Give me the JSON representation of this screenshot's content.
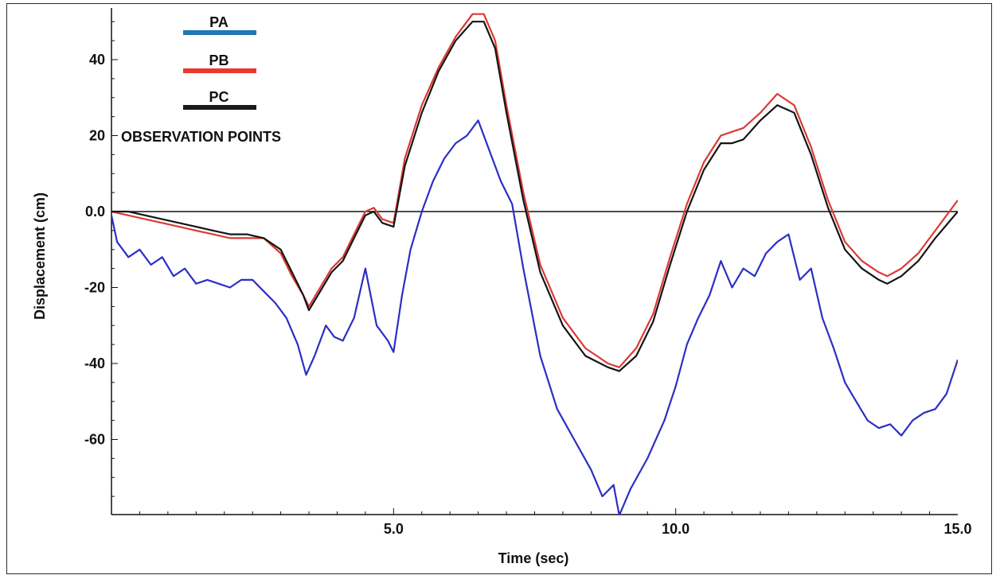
{
  "chart_data": {
    "type": "line",
    "title": "",
    "xlabel": "Time (sec)",
    "ylabel": "Displacement (cm)",
    "xlim": [
      0,
      15
    ],
    "ylim": [
      -80,
      52
    ],
    "x_ticks": [
      5,
      10,
      15
    ],
    "x_tick_labels": [
      "5.0",
      "10.0",
      "15.0"
    ],
    "y_ticks": [
      40,
      20,
      0,
      -20,
      -40,
      -60
    ],
    "y_tick_labels": [
      "40",
      "20",
      "0.0",
      "-20",
      "-40",
      "-60"
    ],
    "zero_line": true,
    "legend_title": "OBSERVATION POINTS",
    "legend_position": "top-left",
    "series": [
      {
        "name": "PA",
        "color": "#2b2fc4",
        "legend_color": "#1f77b4",
        "x": [
          0,
          0.1,
          0.3,
          0.5,
          0.7,
          0.9,
          1.1,
          1.3,
          1.5,
          1.7,
          1.9,
          2.1,
          2.3,
          2.5,
          2.7,
          2.9,
          3.1,
          3.3,
          3.45,
          3.6,
          3.8,
          3.95,
          4.1,
          4.3,
          4.5,
          4.7,
          4.9,
          5.0,
          5.15,
          5.3,
          5.5,
          5.7,
          5.9,
          6.1,
          6.3,
          6.5,
          6.7,
          6.9,
          7.1,
          7.3,
          7.6,
          7.9,
          8.2,
          8.5,
          8.7,
          8.9,
          9.0,
          9.2,
          9.5,
          9.8,
          10.0,
          10.2,
          10.4,
          10.6,
          10.8,
          11.0,
          11.2,
          11.4,
          11.6,
          11.8,
          12.0,
          12.2,
          12.4,
          12.6,
          12.8,
          13.0,
          13.2,
          13.4,
          13.6,
          13.8,
          14.0,
          14.2,
          14.4,
          14.6,
          14.8,
          15.0
        ],
        "values": [
          -1,
          -8,
          -12,
          -10,
          -14,
          -12,
          -17,
          -15,
          -19,
          -18,
          -19,
          -20,
          -18,
          -18,
          -21,
          -24,
          -28,
          -35,
          -43,
          -38,
          -30,
          -33,
          -34,
          -28,
          -15,
          -30,
          -34,
          -37,
          -22,
          -10,
          0,
          8,
          14,
          18,
          20,
          24,
          16,
          8,
          2,
          -15,
          -38,
          -52,
          -60,
          -68,
          -75,
          -72,
          -80,
          -73,
          -65,
          -55,
          -46,
          -35,
          -28,
          -22,
          -13,
          -20,
          -15,
          -17,
          -11,
          -8,
          -6,
          -18,
          -15,
          -28,
          -36,
          -45,
          -50,
          -55,
          -57,
          -56,
          -59,
          -55,
          -53,
          -52,
          -48,
          -39
        ]
      },
      {
        "name": "PB",
        "color": "#d93b35",
        "legend_color": "#e8392e",
        "x": [
          0,
          0.3,
          0.6,
          0.9,
          1.2,
          1.5,
          1.8,
          2.1,
          2.4,
          2.7,
          3.0,
          3.2,
          3.4,
          3.5,
          3.7,
          3.9,
          4.1,
          4.3,
          4.5,
          4.65,
          4.8,
          5.0,
          5.2,
          5.5,
          5.8,
          6.1,
          6.4,
          6.6,
          6.8,
          7.0,
          7.3,
          7.6,
          8.0,
          8.4,
          8.8,
          9.0,
          9.3,
          9.6,
          9.9,
          10.2,
          10.5,
          10.8,
          11.0,
          11.2,
          11.5,
          11.8,
          12.1,
          12.4,
          12.7,
          13.0,
          13.3,
          13.6,
          13.75,
          14.0,
          14.3,
          14.6,
          15.0
        ],
        "values": [
          0,
          -1,
          -2,
          -3,
          -4,
          -5,
          -6,
          -7,
          -7,
          -7,
          -11,
          -17,
          -22,
          -25,
          -20,
          -15,
          -12,
          -6,
          0,
          1,
          -2,
          -3,
          14,
          28,
          38,
          46,
          52,
          52,
          45,
          28,
          5,
          -14,
          -28,
          -36,
          -40,
          -41,
          -36,
          -27,
          -12,
          2,
          13,
          20,
          21,
          22,
          26,
          31,
          28,
          17,
          3,
          -8,
          -13,
          -16,
          -17,
          -15,
          -11,
          -5,
          3
        ]
      },
      {
        "name": "PC",
        "color": "#151515",
        "legend_color": "#1a1a1a",
        "x": [
          0,
          0.3,
          0.6,
          0.9,
          1.2,
          1.5,
          1.8,
          2.1,
          2.4,
          2.7,
          3.0,
          3.2,
          3.4,
          3.5,
          3.7,
          3.9,
          4.1,
          4.3,
          4.5,
          4.65,
          4.8,
          5.0,
          5.2,
          5.5,
          5.8,
          6.1,
          6.4,
          6.6,
          6.8,
          7.0,
          7.3,
          7.6,
          8.0,
          8.4,
          8.8,
          9.0,
          9.3,
          9.6,
          9.9,
          10.2,
          10.5,
          10.8,
          11.0,
          11.2,
          11.5,
          11.8,
          12.1,
          12.4,
          12.7,
          13.0,
          13.3,
          13.6,
          13.75,
          14.0,
          14.3,
          14.6,
          15.0
        ],
        "values": [
          0,
          0,
          -1,
          -2,
          -3,
          -4,
          -5,
          -6,
          -6,
          -7,
          -10,
          -16,
          -22,
          -26,
          -21,
          -16,
          -13,
          -7,
          -1,
          0,
          -3,
          -4,
          12,
          26,
          37,
          45,
          50,
          50,
          43,
          26,
          3,
          -16,
          -30,
          -38,
          -41,
          -42,
          -38,
          -29,
          -14,
          0,
          11,
          18,
          18,
          19,
          24,
          28,
          26,
          15,
          1,
          -10,
          -15,
          -18,
          -19,
          -17,
          -13,
          -7,
          0
        ]
      }
    ]
  }
}
